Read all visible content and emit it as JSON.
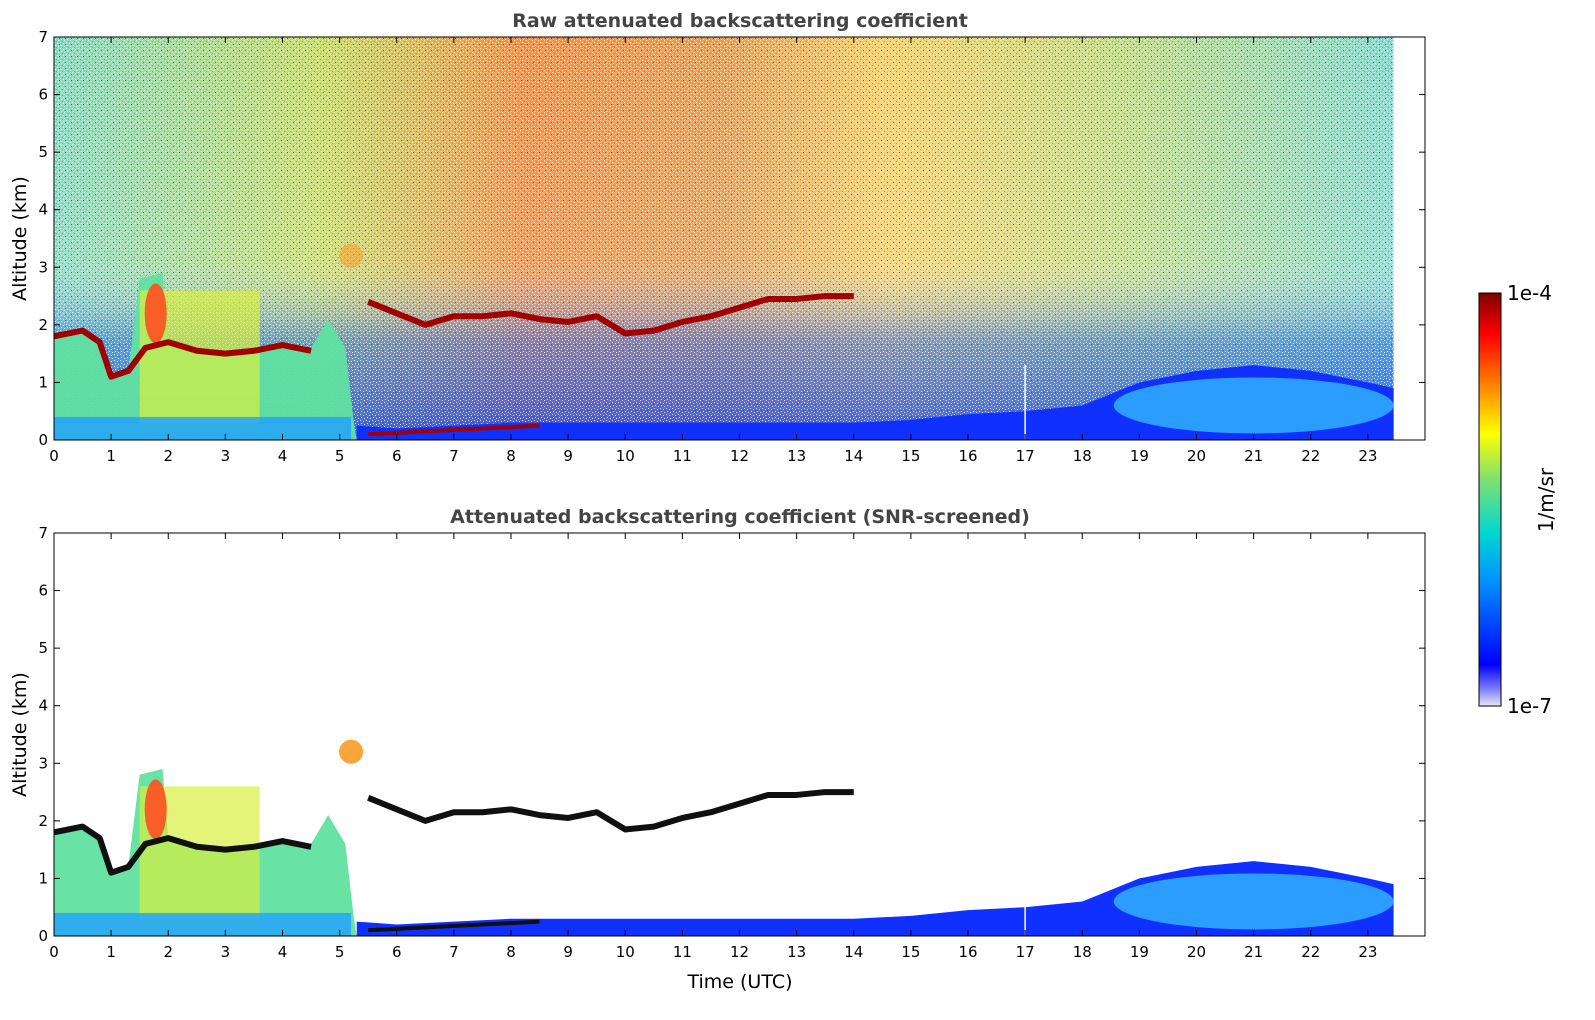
{
  "chart_data": [
    {
      "type": "heatmap",
      "title": "Raw attenuated backscattering coefficient",
      "xlabel": "",
      "ylabel": "Altitude (km)",
      "xlim": [
        0,
        24
      ],
      "ylim": [
        0,
        7
      ],
      "x_ticks": [
        "0",
        "1",
        "2",
        "3",
        "4",
        "5",
        "6",
        "7",
        "8",
        "9",
        "10",
        "11",
        "12",
        "13",
        "14",
        "15",
        "16",
        "17",
        "18",
        "19",
        "20",
        "21",
        "22",
        "23"
      ],
      "y_ticks": [
        "0",
        "1",
        "2",
        "3",
        "4",
        "5",
        "6",
        "7"
      ],
      "data_end_hour": 23.45,
      "cloud_layer": {
        "x": [
          0,
          0.5,
          0.8,
          1.0,
          1.3,
          1.6,
          2.0,
          2.5,
          3.0,
          3.5,
          4.0,
          4.5,
          5.5,
          6.5,
          7.0,
          7.5,
          8.0,
          8.5,
          9.0,
          9.5,
          10.0,
          10.5,
          11.0,
          11.5,
          12.0,
          12.5,
          13.0,
          13.5,
          14.0
        ],
        "y": [
          1.8,
          1.9,
          1.7,
          1.1,
          1.2,
          1.6,
          1.7,
          1.55,
          1.5,
          1.55,
          1.65,
          1.55,
          2.4,
          2.0,
          2.15,
          2.15,
          2.2,
          2.1,
          2.05,
          2.15,
          1.85,
          1.9,
          2.05,
          2.15,
          2.3,
          2.45,
          2.45,
          2.5,
          2.5
        ]
      },
      "boundary_layer_top": {
        "x": [
          5.3,
          6,
          8,
          10,
          14,
          15,
          16,
          17,
          18,
          19,
          20,
          21,
          22,
          23,
          23.45
        ],
        "y": [
          0.25,
          0.2,
          0.3,
          0.3,
          0.3,
          0.35,
          0.45,
          0.5,
          0.6,
          1.0,
          1.2,
          1.3,
          1.2,
          1.0,
          0.9
        ]
      }
    },
    {
      "type": "heatmap",
      "title": "Attenuated backscattering coefficient (SNR-screened)",
      "xlabel": "Time (UTC)",
      "ylabel": "Altitude (km)",
      "xlim": [
        0,
        24
      ],
      "ylim": [
        0,
        7
      ],
      "x_ticks": [
        "0",
        "1",
        "2",
        "3",
        "4",
        "5",
        "6",
        "7",
        "8",
        "9",
        "10",
        "11",
        "12",
        "13",
        "14",
        "15",
        "16",
        "17",
        "18",
        "19",
        "20",
        "21",
        "22",
        "23"
      ],
      "y_ticks": [
        "0",
        "1",
        "2",
        "3",
        "4",
        "5",
        "6",
        "7"
      ],
      "data_end_hour": 23.45
    }
  ],
  "colorbar": {
    "label": "1/m/sr",
    "max_label": "1e-4",
    "min_label": "1e-7",
    "scale": "log",
    "colors": [
      "#e6e6f5",
      "#0000ff",
      "#00a0ff",
      "#00e0c0",
      "#a0e060",
      "#ffff00",
      "#ff8000",
      "#ff0000",
      "#800000"
    ]
  }
}
